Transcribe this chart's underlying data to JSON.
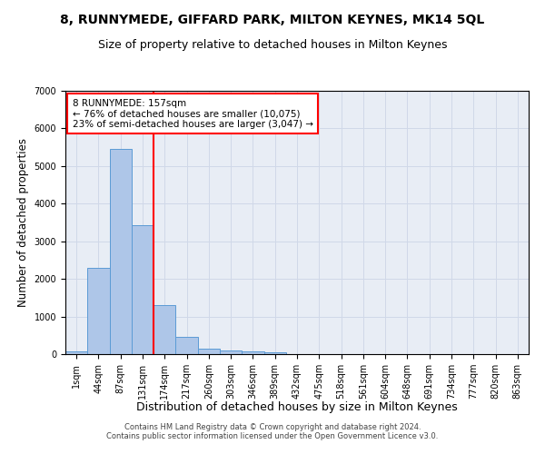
{
  "title": "8, RUNNYMEDE, GIFFARD PARK, MILTON KEYNES, MK14 5QL",
  "subtitle": "Size of property relative to detached houses in Milton Keynes",
  "xlabel": "Distribution of detached houses by size in Milton Keynes",
  "ylabel": "Number of detached properties",
  "footer_line1": "Contains HM Land Registry data © Crown copyright and database right 2024.",
  "footer_line2": "Contains public sector information licensed under the Open Government Licence v3.0.",
  "bar_labels": [
    "1sqm",
    "44sqm",
    "87sqm",
    "131sqm",
    "174sqm",
    "217sqm",
    "260sqm",
    "303sqm",
    "346sqm",
    "389sqm",
    "432sqm",
    "475sqm",
    "518sqm",
    "561sqm",
    "604sqm",
    "648sqm",
    "691sqm",
    "734sqm",
    "777sqm",
    "820sqm",
    "863sqm"
  ],
  "bar_values": [
    75,
    2300,
    5450,
    3430,
    1310,
    470,
    155,
    95,
    65,
    40,
    0,
    0,
    0,
    0,
    0,
    0,
    0,
    0,
    0,
    0,
    0
  ],
  "bar_color": "#aec6e8",
  "bar_edge_color": "#5b9bd5",
  "vline_x": 3.5,
  "vline_color": "red",
  "annotation_text": "8 RUNNYMEDE: 157sqm\n← 76% of detached houses are smaller (10,075)\n23% of semi-detached houses are larger (3,047) →",
  "annotation_box_color": "red",
  "ylim": [
    0,
    7000
  ],
  "yticks": [
    0,
    1000,
    2000,
    3000,
    4000,
    5000,
    6000,
    7000
  ],
  "grid_color": "#d0d8e8",
  "background_color": "#e8edf5",
  "title_fontsize": 10,
  "subtitle_fontsize": 9,
  "xlabel_fontsize": 9,
  "ylabel_fontsize": 8.5,
  "tick_fontsize": 7,
  "annotation_fontsize": 7.5,
  "footer_fontsize": 6
}
